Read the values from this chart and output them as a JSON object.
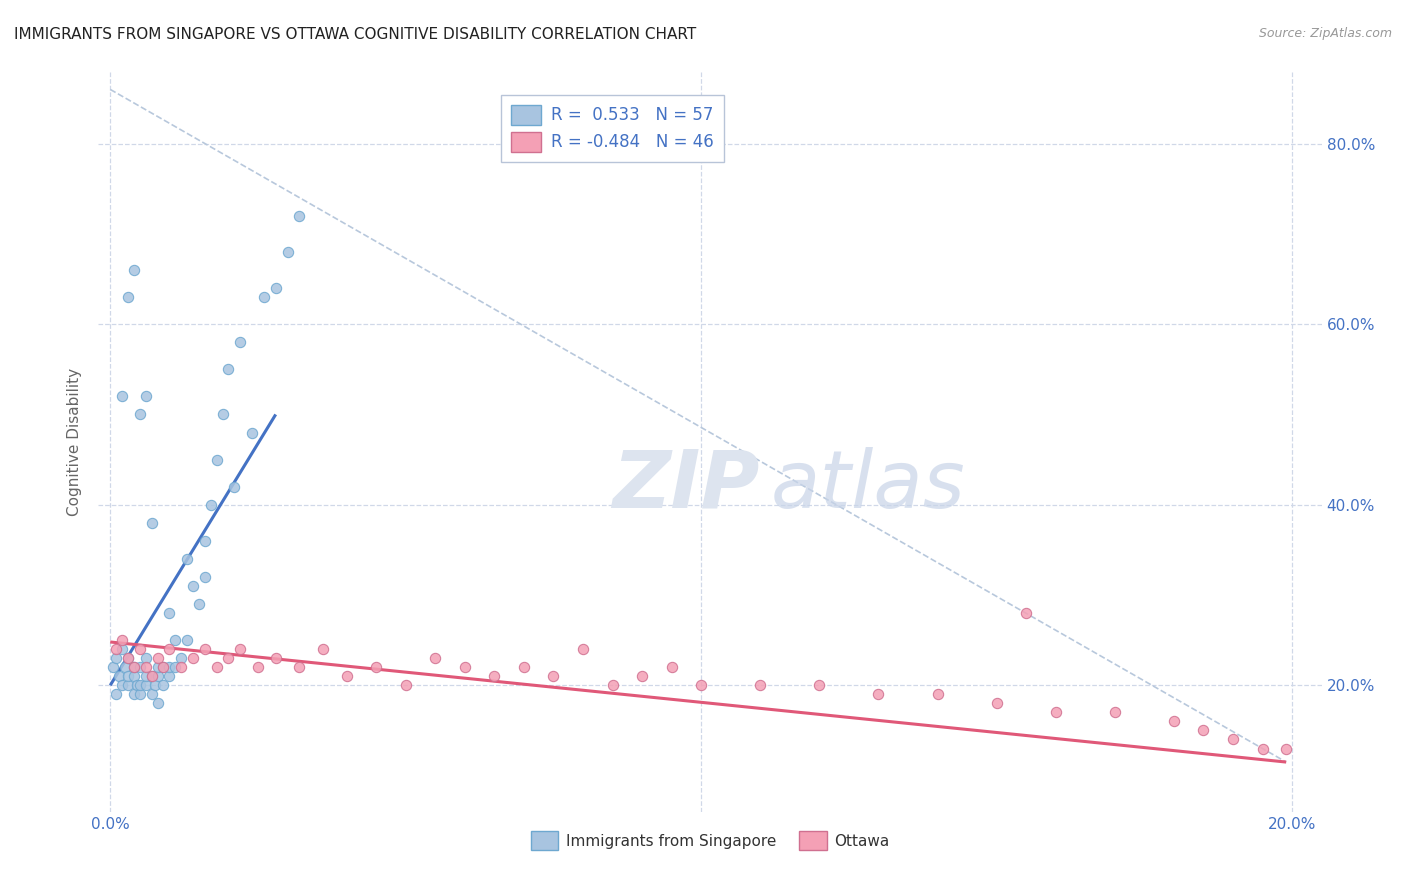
{
  "title": "IMMIGRANTS FROM SINGAPORE VS OTTAWA COGNITIVE DISABILITY CORRELATION CHART",
  "source": "Source: ZipAtlas.com",
  "ylabel": "Cognitive Disability",
  "xlim": [
    -0.002,
    0.205
  ],
  "ylim": [
    0.06,
    0.88
  ],
  "xtick_positions": [
    0.0,
    0.04,
    0.08,
    0.12,
    0.16,
    0.2
  ],
  "xticklabels": [
    "0.0%",
    "",
    "",
    "",
    "",
    "20.0%"
  ],
  "ytick_positions": [
    0.2,
    0.4,
    0.6,
    0.8
  ],
  "yticklabels": [
    "20.0%",
    "40.0%",
    "60.0%",
    "80.0%"
  ],
  "blue_color": "#a8c4e0",
  "blue_edge_color": "#6ea8d0",
  "pink_color": "#f4a0b5",
  "pink_edge_color": "#d07090",
  "blue_line_color": "#4472c4",
  "pink_line_color": "#e05878",
  "dot_size": 55,
  "dot_alpha": 0.85,
  "blue_scatter_x": [
    0.0005,
    0.001,
    0.001,
    0.0015,
    0.002,
    0.002,
    0.0025,
    0.003,
    0.003,
    0.003,
    0.004,
    0.004,
    0.004,
    0.0045,
    0.005,
    0.005,
    0.005,
    0.006,
    0.006,
    0.006,
    0.007,
    0.007,
    0.0075,
    0.008,
    0.008,
    0.009,
    0.009,
    0.01,
    0.01,
    0.01,
    0.011,
    0.011,
    0.012,
    0.013,
    0.013,
    0.014,
    0.015,
    0.016,
    0.016,
    0.017,
    0.018,
    0.019,
    0.02,
    0.021,
    0.022,
    0.024,
    0.026,
    0.028,
    0.03,
    0.032,
    0.002,
    0.003,
    0.004,
    0.005,
    0.006,
    0.007,
    0.008
  ],
  "blue_scatter_y": [
    0.22,
    0.19,
    0.23,
    0.21,
    0.2,
    0.24,
    0.22,
    0.2,
    0.21,
    0.23,
    0.19,
    0.21,
    0.22,
    0.2,
    0.19,
    0.2,
    0.22,
    0.2,
    0.21,
    0.23,
    0.19,
    0.21,
    0.2,
    0.21,
    0.22,
    0.2,
    0.22,
    0.21,
    0.28,
    0.22,
    0.22,
    0.25,
    0.23,
    0.25,
    0.34,
    0.31,
    0.29,
    0.32,
    0.36,
    0.4,
    0.45,
    0.5,
    0.55,
    0.42,
    0.58,
    0.48,
    0.63,
    0.64,
    0.68,
    0.72,
    0.52,
    0.63,
    0.66,
    0.5,
    0.52,
    0.38,
    0.18
  ],
  "pink_scatter_x": [
    0.001,
    0.002,
    0.003,
    0.004,
    0.005,
    0.006,
    0.007,
    0.008,
    0.009,
    0.01,
    0.012,
    0.014,
    0.016,
    0.018,
    0.02,
    0.022,
    0.025,
    0.028,
    0.032,
    0.036,
    0.04,
    0.045,
    0.05,
    0.055,
    0.06,
    0.065,
    0.07,
    0.075,
    0.08,
    0.085,
    0.09,
    0.095,
    0.1,
    0.11,
    0.12,
    0.13,
    0.14,
    0.15,
    0.155,
    0.16,
    0.17,
    0.18,
    0.185,
    0.19,
    0.195,
    0.199
  ],
  "pink_scatter_y": [
    0.24,
    0.25,
    0.23,
    0.22,
    0.24,
    0.22,
    0.21,
    0.23,
    0.22,
    0.24,
    0.22,
    0.23,
    0.24,
    0.22,
    0.23,
    0.24,
    0.22,
    0.23,
    0.22,
    0.24,
    0.21,
    0.22,
    0.2,
    0.23,
    0.22,
    0.21,
    0.22,
    0.21,
    0.24,
    0.2,
    0.21,
    0.22,
    0.2,
    0.2,
    0.2,
    0.19,
    0.19,
    0.18,
    0.28,
    0.17,
    0.17,
    0.16,
    0.15,
    0.14,
    0.13,
    0.13
  ],
  "blue_trend_x": [
    0.0,
    0.028
  ],
  "blue_trend_y": [
    0.2,
    0.5
  ],
  "pink_trend_x": [
    0.0,
    0.199
  ],
  "pink_trend_y": [
    0.248,
    0.115
  ],
  "diag_line_x": [
    0.0,
    0.199
  ],
  "diag_line_y": [
    0.86,
    0.115
  ],
  "watermark_zip": "ZIP",
  "watermark_atlas": "atlas",
  "background_color": "#ffffff",
  "grid_color": "#d0d8e8",
  "legend_r1": "R =  0.533",
  "legend_n1": "N = 57",
  "legend_r2": "R = -0.484",
  "legend_n2": "N = 46",
  "text_color_blue": "#4472c4",
  "text_color_dark": "#333333"
}
